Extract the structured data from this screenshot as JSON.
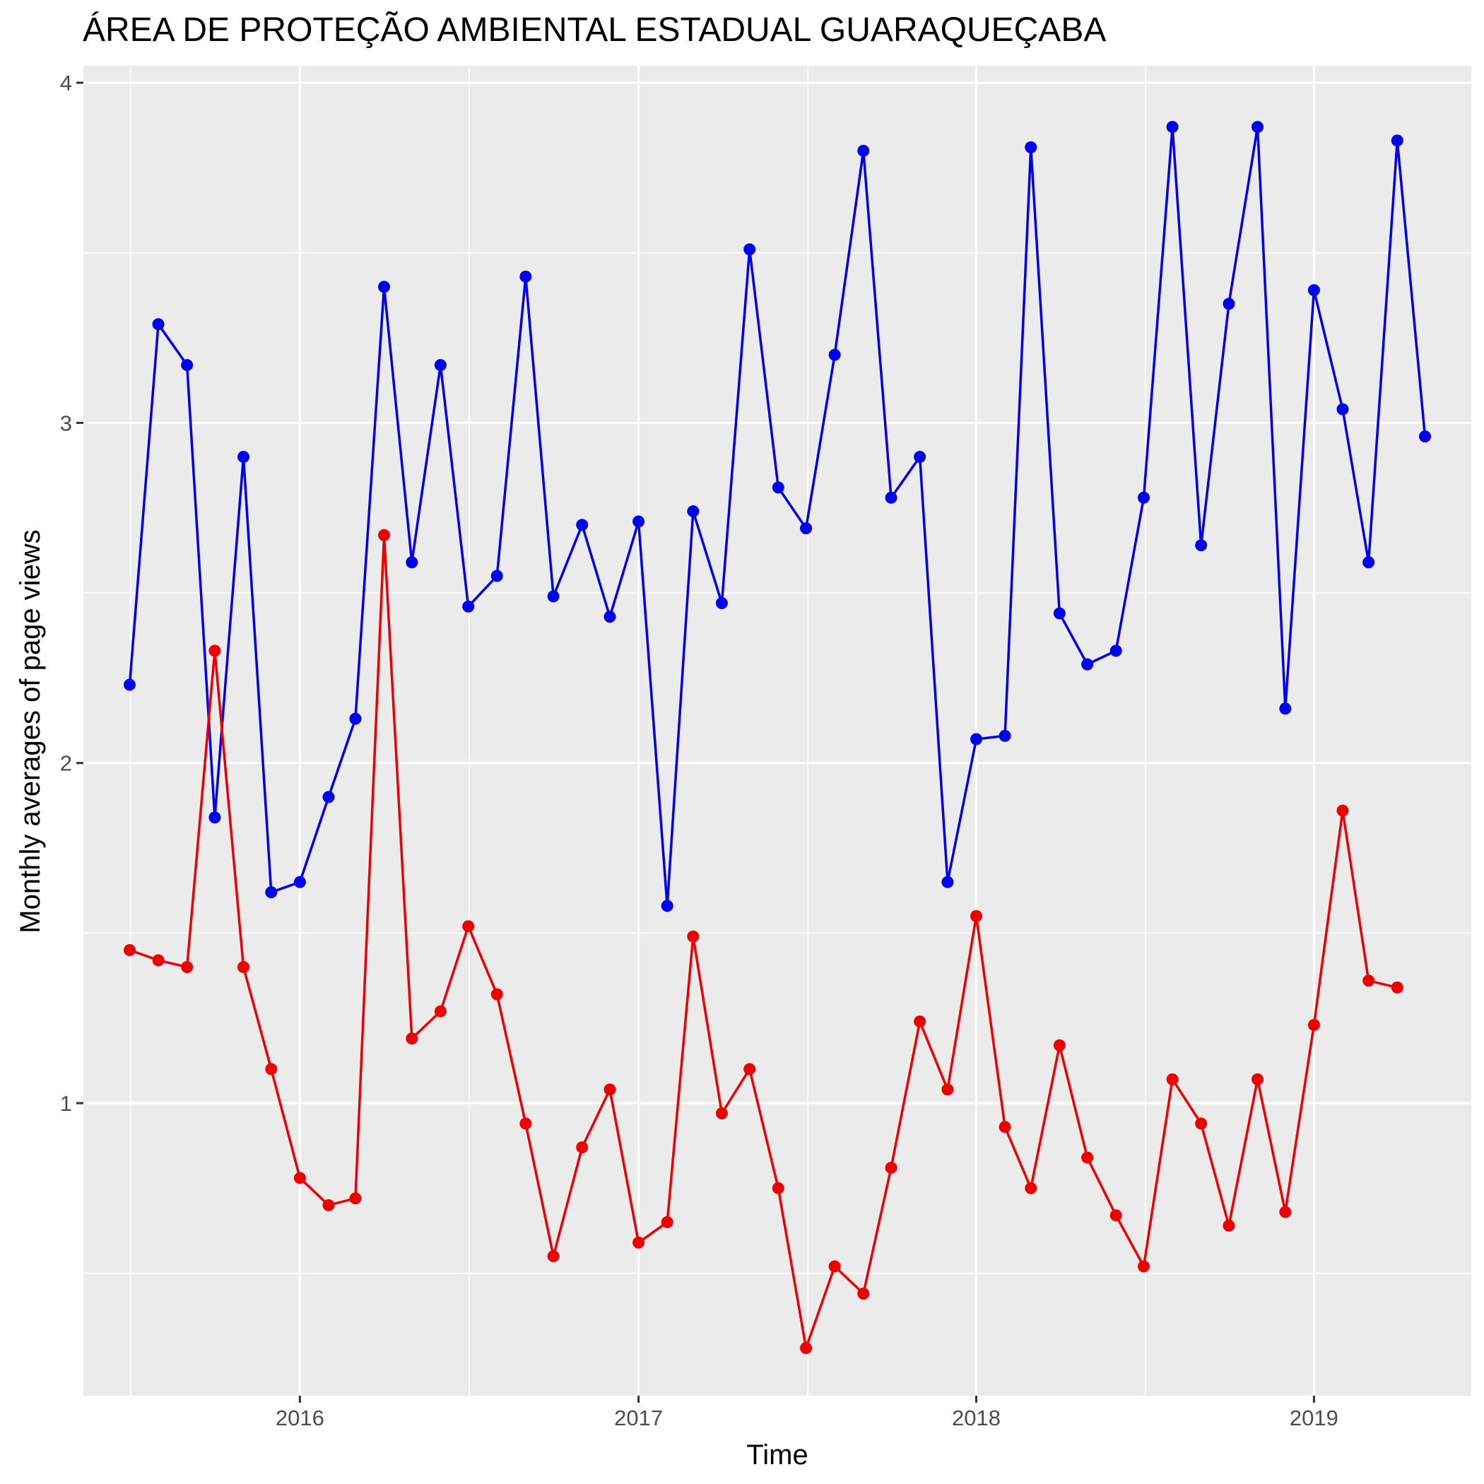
{
  "chart_data": {
    "type": "line",
    "title": "ÁREA DE PROTEÇÃO AMBIENTAL ESTADUAL GUARAQUEÇABA",
    "xlabel": "Time",
    "ylabel": "Monthly averages of page views",
    "xlim": [
      "2015-05-12",
      "2019-06-20"
    ],
    "ylim": [
      0.14,
      4.05
    ],
    "grid": true,
    "x_ticks": [
      {
        "date": "2016-01-01",
        "label": "2016"
      },
      {
        "date": "2017-01-01",
        "label": "2017"
      },
      {
        "date": "2018-01-01",
        "label": "2018"
      },
      {
        "date": "2019-01-01",
        "label": "2019"
      }
    ],
    "y_ticks": [
      {
        "value": 1,
        "label": "1"
      },
      {
        "value": 2,
        "label": "2"
      },
      {
        "value": 3,
        "label": "3"
      },
      {
        "value": 4,
        "label": "4"
      }
    ],
    "series": [
      {
        "color": "#0000ee",
        "points": [
          [
            "2015-07-01",
            2.23
          ],
          [
            "2015-08-01",
            3.29
          ],
          [
            "2015-09-01",
            3.17
          ],
          [
            "2015-10-01",
            1.84
          ],
          [
            "2015-11-01",
            2.9
          ],
          [
            "2015-12-01",
            1.62
          ],
          [
            "2016-01-01",
            1.65
          ],
          [
            "2016-02-01",
            1.9
          ],
          [
            "2016-03-01",
            2.13
          ],
          [
            "2016-04-01",
            3.4
          ],
          [
            "2016-05-01",
            2.59
          ],
          [
            "2016-06-01",
            3.17
          ],
          [
            "2016-07-01",
            2.46
          ],
          [
            "2016-08-01",
            2.55
          ],
          [
            "2016-09-01",
            3.43
          ],
          [
            "2016-10-01",
            2.49
          ],
          [
            "2016-11-01",
            2.7
          ],
          [
            "2016-12-01",
            2.43
          ],
          [
            "2017-01-01",
            2.71
          ],
          [
            "2017-02-01",
            1.58
          ],
          [
            "2017-03-01",
            2.74
          ],
          [
            "2017-04-01",
            2.47
          ],
          [
            "2017-05-01",
            3.51
          ],
          [
            "2017-06-01",
            2.81
          ],
          [
            "2017-07-01",
            2.69
          ],
          [
            "2017-08-01",
            3.2
          ],
          [
            "2017-09-01",
            3.8
          ],
          [
            "2017-10-01",
            2.78
          ],
          [
            "2017-11-01",
            2.9
          ],
          [
            "2017-12-01",
            1.65
          ],
          [
            "2018-01-01",
            2.07
          ],
          [
            "2018-02-01",
            2.08
          ],
          [
            "2018-03-01",
            3.81
          ],
          [
            "2018-04-01",
            2.44
          ],
          [
            "2018-05-01",
            2.29
          ],
          [
            "2018-06-01",
            2.33
          ],
          [
            "2018-07-01",
            2.78
          ],
          [
            "2018-08-01",
            3.87
          ],
          [
            "2018-09-01",
            2.64
          ],
          [
            "2018-10-01",
            3.35
          ],
          [
            "2018-11-01",
            3.87
          ],
          [
            "2018-12-01",
            2.16
          ],
          [
            "2019-01-01",
            3.39
          ],
          [
            "2019-02-01",
            3.04
          ],
          [
            "2019-03-01",
            2.59
          ],
          [
            "2019-04-01",
            3.83
          ],
          [
            "2019-05-01",
            2.96
          ]
        ]
      },
      {
        "color": "#ee0000",
        "points": [
          [
            "2015-07-01",
            1.45
          ],
          [
            "2015-08-01",
            1.42
          ],
          [
            "2015-09-01",
            1.4
          ],
          [
            "2015-10-01",
            2.33
          ],
          [
            "2015-11-01",
            1.4
          ],
          [
            "2015-12-01",
            1.1
          ],
          [
            "2016-01-01",
            0.78
          ],
          [
            "2016-02-01",
            0.7
          ],
          [
            "2016-03-01",
            0.72
          ],
          [
            "2016-04-01",
            2.67
          ],
          [
            "2016-05-01",
            1.19
          ],
          [
            "2016-06-01",
            1.27
          ],
          [
            "2016-07-01",
            1.52
          ],
          [
            "2016-08-01",
            1.32
          ],
          [
            "2016-09-01",
            0.94
          ],
          [
            "2016-10-01",
            0.55
          ],
          [
            "2016-11-01",
            0.87
          ],
          [
            "2016-12-01",
            1.04
          ],
          [
            "2017-01-01",
            0.59
          ],
          [
            "2017-02-01",
            0.65
          ],
          [
            "2017-03-01",
            1.49
          ],
          [
            "2017-04-01",
            0.97
          ],
          [
            "2017-05-01",
            1.1
          ],
          [
            "2017-06-01",
            0.75
          ],
          [
            "2017-07-01",
            0.28
          ],
          [
            "2017-08-01",
            0.52
          ],
          [
            "2017-09-01",
            0.44
          ],
          [
            "2017-10-01",
            0.81
          ],
          [
            "2017-11-01",
            1.24
          ],
          [
            "2017-12-01",
            1.04
          ],
          [
            "2018-01-01",
            1.55
          ],
          [
            "2018-02-01",
            0.93
          ],
          [
            "2018-03-01",
            0.75
          ],
          [
            "2018-04-01",
            1.17
          ],
          [
            "2018-05-01",
            0.84
          ],
          [
            "2018-06-01",
            0.67
          ],
          [
            "2018-07-01",
            0.52
          ],
          [
            "2018-08-01",
            1.07
          ],
          [
            "2018-09-01",
            0.94
          ],
          [
            "2018-10-01",
            0.64
          ],
          [
            "2018-11-01",
            1.07
          ],
          [
            "2018-12-01",
            0.68
          ],
          [
            "2019-01-01",
            1.23
          ],
          [
            "2019-02-01",
            1.86
          ],
          [
            "2019-03-01",
            1.36
          ],
          [
            "2019-04-01",
            1.34
          ]
        ]
      }
    ]
  }
}
